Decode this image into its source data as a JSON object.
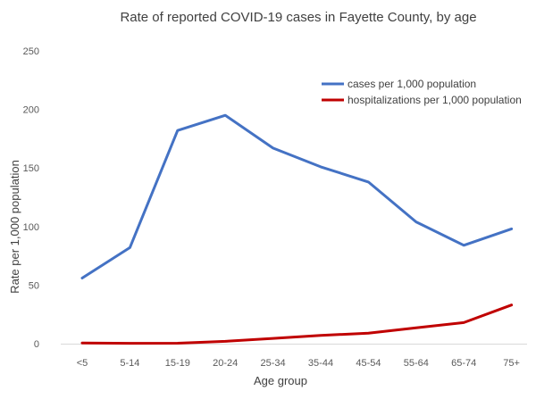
{
  "chart_data": {
    "type": "line",
    "title": "Rate of reported COVID-19 cases in Fayette County, by age",
    "xlabel": "Age group",
    "ylabel": "Rate per 1,000 population",
    "categories": [
      "<5",
      "5-14",
      "15-19",
      "20-24",
      "25-34",
      "35-44",
      "45-54",
      "55-64",
      "65-74",
      "75+"
    ],
    "ylim": [
      0,
      250
    ],
    "yticks": [
      "0",
      "50",
      "100",
      "150",
      "200",
      "250"
    ],
    "grid": false,
    "legend_position": "top-right",
    "series": [
      {
        "name": "cases per 1,000 population",
        "color": "#4472C4",
        "values": [
          56,
          82,
          182,
          195,
          167,
          151,
          138,
          104,
          84,
          98
        ]
      },
      {
        "name": "hospitalizations per 1,000 population",
        "color": "#C00000",
        "values": [
          0.5,
          0.3,
          0.4,
          2,
          4.5,
          7,
          9,
          13.5,
          18,
          33
        ]
      }
    ]
  }
}
